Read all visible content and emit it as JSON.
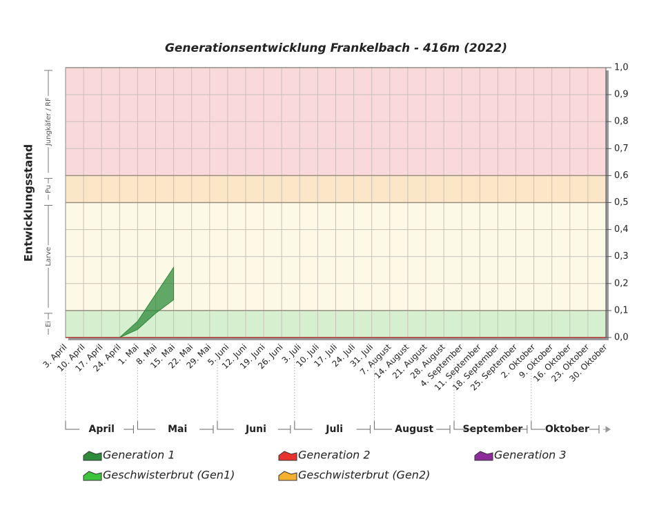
{
  "chart_data": {
    "type": "area",
    "title": "Generationsentwicklung Frankelbach - 416m (2022)",
    "y_label": "Entwicklungsstand",
    "ylim": [
      0,
      1
    ],
    "yticks": [
      {
        "value": 0,
        "label": "0,0"
      },
      {
        "value": 0.1,
        "label": "0,1"
      },
      {
        "value": 0.2,
        "label": "0,2"
      },
      {
        "value": 0.3,
        "label": "0,3"
      },
      {
        "value": 0.4,
        "label": "0,4"
      },
      {
        "value": 0.5,
        "label": "0,5"
      },
      {
        "value": 0.6,
        "label": "0,6"
      },
      {
        "value": 0.7,
        "label": "0,7"
      },
      {
        "value": 0.8,
        "label": "0,8"
      },
      {
        "value": 0.9,
        "label": "0,9"
      },
      {
        "value": 1,
        "label": "1,0"
      }
    ],
    "grid": true,
    "stages": [
      {
        "label": "Ei",
        "from": 0,
        "to": 0.1,
        "color": "#d6efcf"
      },
      {
        "label": "Larve",
        "from": 0.1,
        "to": 0.5,
        "color": "#fcf9e6"
      },
      {
        "label": "Pu",
        "from": 0.5,
        "to": 0.6,
        "color": "#fbe6c8"
      },
      {
        "label": "Jungkäfer / RF",
        "from": 0.6,
        "to": 1,
        "color": "#f9d9d9"
      }
    ],
    "categories": [
      "3. April",
      "10. April",
      "17. April",
      "24. April",
      "1. Mai",
      "8. Mai",
      "15. Mai",
      "22. Mai",
      "29. Mai",
      "5. Juni",
      "12. Juni",
      "19. Juni",
      "26. Juni",
      "3. Juli",
      "10. Juli",
      "17. Juli",
      "24. Juli",
      "31. Juli",
      "7. August",
      "14. August",
      "21. August",
      "28. August",
      "4. September",
      "11. September",
      "18. September",
      "25. September",
      "2. Oktober",
      "9. Oktober",
      "16. Oktober",
      "23. Oktober",
      "30. Oktober"
    ],
    "months": [
      "April",
      "Mai",
      "Juni",
      "Juli",
      "August",
      "September",
      "Oktober"
    ],
    "series": [
      {
        "name": "Generation 1",
        "color": "#2e8b3a",
        "values": [
          null,
          null,
          null,
          0,
          0.06,
          0.16,
          0.26,
          null,
          null,
          null,
          null,
          null,
          null,
          null,
          null,
          null,
          null,
          null,
          null,
          null,
          null,
          null,
          null,
          null,
          null,
          null,
          null,
          null,
          null,
          null,
          null
        ],
        "low": [
          null,
          null,
          null,
          0,
          0.03,
          0.09,
          0.14,
          null,
          null,
          null,
          null,
          null,
          null,
          null,
          null,
          null,
          null,
          null,
          null,
          null,
          null,
          null,
          null,
          null,
          null,
          null,
          null,
          null,
          null,
          null,
          null
        ]
      },
      {
        "name": "Generation 2",
        "color": "#e8322e",
        "values": [
          null,
          null,
          null,
          null,
          null,
          null,
          null,
          null,
          null,
          null,
          null,
          null,
          null,
          null,
          null,
          null,
          null,
          null,
          null,
          null,
          null,
          null,
          null,
          null,
          null,
          null,
          null,
          null,
          null,
          null,
          null
        ]
      },
      {
        "name": "Generation 3",
        "color": "#8e2b9a",
        "values": [
          null,
          null,
          null,
          null,
          null,
          null,
          null,
          null,
          null,
          null,
          null,
          null,
          null,
          null,
          null,
          null,
          null,
          null,
          null,
          null,
          null,
          null,
          null,
          null,
          null,
          null,
          null,
          null,
          null,
          null,
          null
        ]
      },
      {
        "name": "Geschwisterbrut (Gen1)",
        "color": "#3cc43c",
        "values": [
          null,
          null,
          null,
          null,
          null,
          null,
          null,
          null,
          null,
          null,
          null,
          null,
          null,
          null,
          null,
          null,
          null,
          null,
          null,
          null,
          null,
          null,
          null,
          null,
          null,
          null,
          null,
          null,
          null,
          null,
          null
        ]
      },
      {
        "name": "Geschwisterbrut (Gen2)",
        "color": "#f5b030",
        "values": [
          null,
          null,
          null,
          null,
          null,
          null,
          null,
          null,
          null,
          null,
          null,
          null,
          null,
          null,
          null,
          null,
          null,
          null,
          null,
          null,
          null,
          null,
          null,
          null,
          null,
          null,
          null,
          null,
          null,
          null,
          null
        ]
      }
    ]
  }
}
